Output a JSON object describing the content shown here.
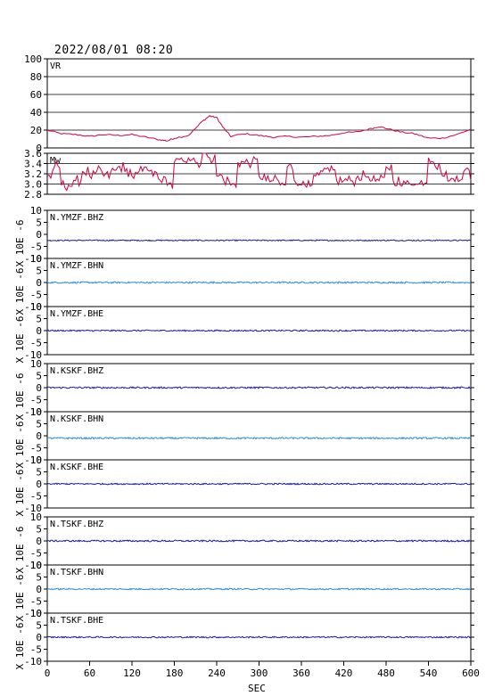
{
  "title": "2022/08/01 08:20",
  "xlabel": "SEC",
  "colors": {
    "vr": "#d4003c",
    "mw": "#d4003c",
    "dark_trace": "#1a1a9a",
    "light_trace": "#2a8ad8",
    "frame": "#000000"
  },
  "chart_data": [
    {
      "type": "line",
      "label": "VR",
      "ylim": [
        0,
        100
      ],
      "yticks": [
        "100",
        "80",
        "60",
        "40",
        "20",
        "0"
      ],
      "grid": true,
      "x": [
        0,
        20,
        40,
        60,
        80,
        100,
        120,
        140,
        160,
        170,
        180,
        200,
        220,
        230,
        240,
        250,
        260,
        280,
        300,
        320,
        340,
        360,
        380,
        400,
        420,
        440,
        460,
        470,
        480,
        500,
        520,
        540,
        560,
        580,
        600
      ],
      "values": [
        20,
        16,
        15,
        13,
        15,
        14,
        15,
        12,
        9,
        8,
        11,
        14,
        30,
        36,
        34,
        22,
        13,
        16,
        14,
        12,
        13,
        12,
        13,
        14,
        17,
        18,
        22,
        24,
        22,
        18,
        16,
        11,
        11,
        15,
        21
      ]
    },
    {
      "type": "line",
      "label": "Mw",
      "ylim": [
        2.7,
        3.6
      ],
      "yticks": [
        "3.6",
        "3.4",
        "3.2",
        "3.0",
        "2.8"
      ],
      "grid": true,
      "x": [
        0,
        10,
        20,
        30,
        40,
        50,
        60,
        70,
        80,
        90,
        100,
        110,
        120,
        130,
        140,
        150,
        160,
        170,
        180,
        190,
        200,
        210,
        220,
        230,
        240,
        250,
        260,
        270,
        280,
        290,
        300,
        310,
        320,
        330,
        340,
        350,
        360,
        370,
        380,
        390,
        400,
        410,
        420,
        430,
        440,
        450,
        460,
        470,
        480,
        490,
        500,
        510,
        520,
        530,
        540,
        550,
        560,
        570,
        580,
        590,
        600
      ],
      "values": [
        3.1,
        3.3,
        2.9,
        2.9,
        3.0,
        3.2,
        3.1,
        3.2,
        3.1,
        3.2,
        3.3,
        3.2,
        3.1,
        3.2,
        3.3,
        3.1,
        3.0,
        2.9,
        3.4,
        3.5,
        3.5,
        3.4,
        3.6,
        3.5,
        3.1,
        3.0,
        2.9,
        3.4,
        3.4,
        3.4,
        3.1,
        3.0,
        3.0,
        2.9,
        3.3,
        3.0,
        2.9,
        3.0,
        3.1,
        3.2,
        3.2,
        3.0,
        3.0,
        3.0,
        3.1,
        3.1,
        3.0,
        3.0,
        3.3,
        3.0,
        2.9,
        3.0,
        2.9,
        3.0,
        3.5,
        3.3,
        3.1,
        3.0,
        3.1,
        3.2,
        3.0
      ]
    },
    {
      "type": "line",
      "label": "N.YMZF.BHZ",
      "ylim": [
        -10,
        10
      ],
      "yticks": [
        "10",
        "5",
        "0",
        "-5",
        "-10"
      ],
      "baseline": -2.5,
      "noise": 0.25,
      "color_key": "dark_trace"
    },
    {
      "type": "line",
      "label": "N.YMZF.BHN",
      "ylim": [
        -10,
        10
      ],
      "yticks": [
        "10",
        "5",
        "0",
        "-5",
        "-10"
      ],
      "baseline": 0.0,
      "noise": 0.35,
      "color_key": "light_trace"
    },
    {
      "type": "line",
      "label": "N.YMZF.BHE",
      "ylim": [
        -10,
        10
      ],
      "yticks": [
        "10",
        "5",
        "0",
        "-5",
        "-10"
      ],
      "baseline": 0.0,
      "noise": 0.3,
      "color_key": "dark_trace"
    },
    {
      "type": "line",
      "label": "N.KSKF.BHZ",
      "ylim": [
        -10,
        10
      ],
      "yticks": [
        "10",
        "5",
        "0",
        "-5",
        "-10"
      ],
      "baseline": 0.0,
      "noise": 0.35,
      "color_key": "dark_trace"
    },
    {
      "type": "line",
      "label": "N.KSKF.BHN",
      "ylim": [
        -10,
        10
      ],
      "yticks": [
        "10",
        "5",
        "0",
        "-5",
        "-10"
      ],
      "baseline": -1.0,
      "noise": 0.35,
      "color_key": "light_trace"
    },
    {
      "type": "line",
      "label": "N.KSKF.BHE",
      "ylim": [
        -10,
        10
      ],
      "yticks": [
        "10",
        "5",
        "0",
        "-5",
        "-10"
      ],
      "baseline": 0.0,
      "noise": 0.3,
      "color_key": "dark_trace"
    },
    {
      "type": "line",
      "label": "N.TSKF.BHZ",
      "ylim": [
        -10,
        10
      ],
      "yticks": [
        "10",
        "5",
        "0",
        "-5",
        "-10"
      ],
      "baseline": 0.0,
      "noise": 0.35,
      "color_key": "dark_trace"
    },
    {
      "type": "line",
      "label": "N.TSKF.BHN",
      "ylim": [
        -10,
        10
      ],
      "yticks": [
        "10",
        "5",
        "0",
        "-5",
        "-10"
      ],
      "baseline": 0.0,
      "noise": 0.3,
      "color_key": "light_trace"
    },
    {
      "type": "line",
      "label": "N.TSKF.BHE",
      "ylim": [
        -10,
        10
      ],
      "yticks": [
        "10",
        "5",
        "0",
        "-5",
        "-10"
      ],
      "baseline": 0.0,
      "noise": 0.3,
      "color_key": "dark_trace"
    }
  ],
  "unit_label": "X 10E -6",
  "xaxis": {
    "range": [
      0,
      600
    ],
    "ticks": [
      "0",
      "60",
      "120",
      "180",
      "240",
      "300",
      "360",
      "420",
      "480",
      "540",
      "600"
    ]
  }
}
